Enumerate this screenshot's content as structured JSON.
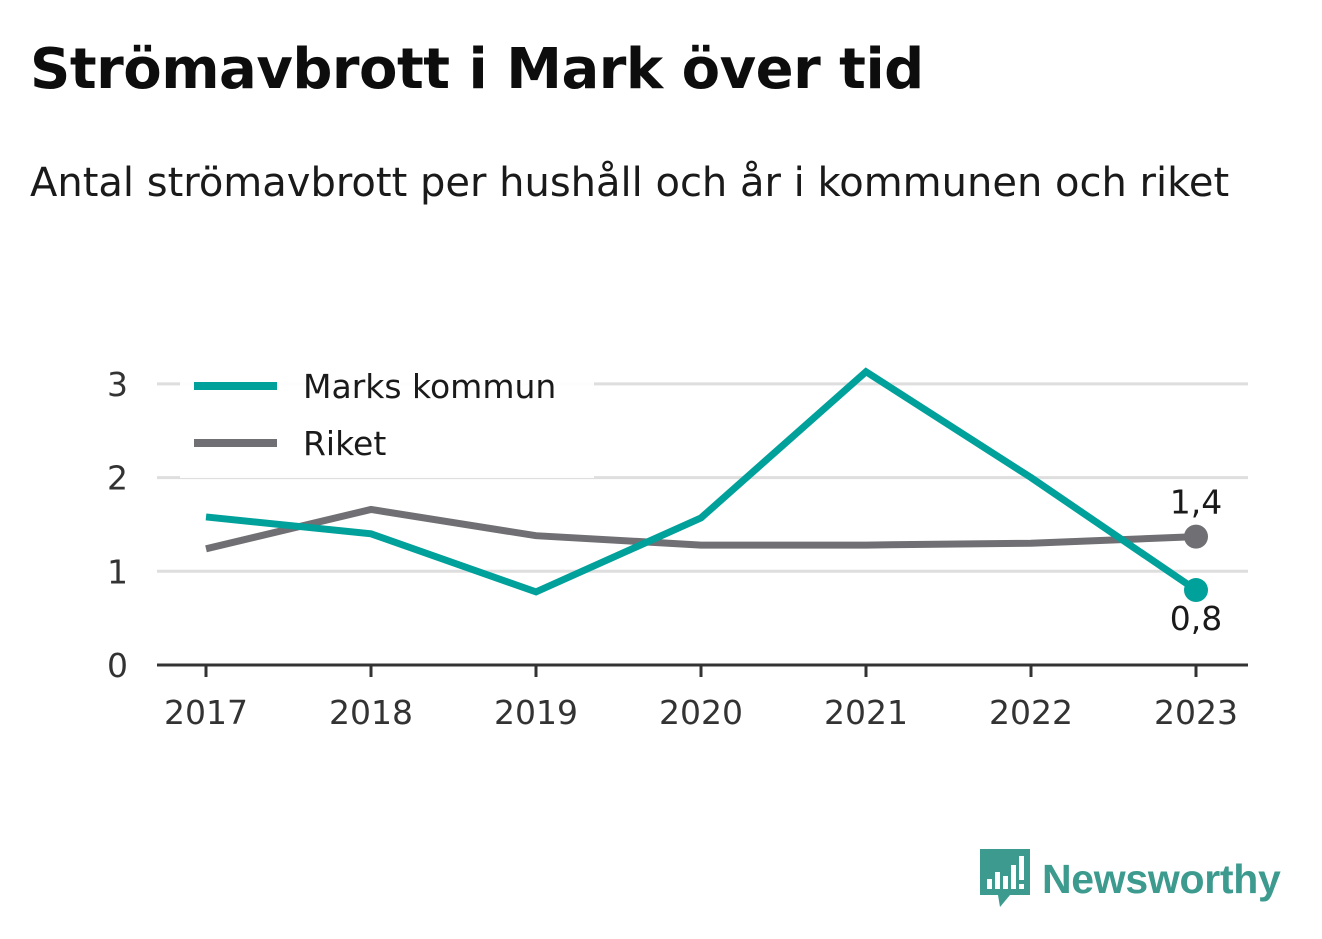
{
  "title": "Strömavbrott i Mark över tid",
  "subtitle": "Antal strömavbrott per hushåll och år i kommunen och riket",
  "brand": {
    "name": "Newsworthy",
    "color": "#3c9a8e",
    "icon": "bar-chart-speech-bubble-icon"
  },
  "chart_data": {
    "type": "line",
    "x": [
      "2017",
      "2018",
      "2019",
      "2020",
      "2021",
      "2022",
      "2023"
    ],
    "ylim": [
      0,
      3
    ],
    "yticks": [
      0,
      1,
      2,
      3
    ],
    "grid": true,
    "legend_position": "top-left",
    "series": [
      {
        "name": "Marks kommun",
        "color": "#00a19a",
        "values": [
          1.58,
          1.4,
          0.78,
          1.57,
          3.13,
          2.0,
          0.8
        ],
        "end_label": "0,8"
      },
      {
        "name": "Riket",
        "color": "#707074",
        "values": [
          1.24,
          1.66,
          1.38,
          1.28,
          1.28,
          1.3,
          1.37
        ],
        "end_label": "1,4"
      }
    ]
  }
}
